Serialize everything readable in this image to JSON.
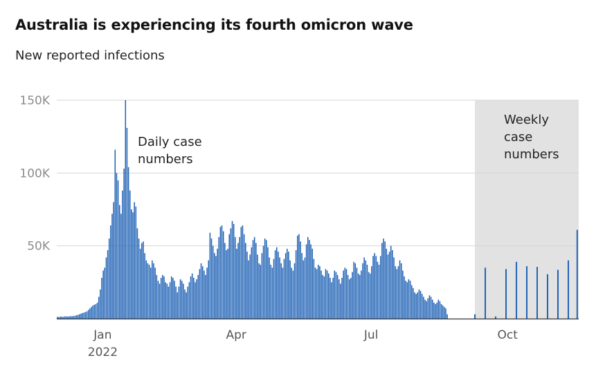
{
  "chart_data": {
    "type": "bar",
    "title": "Australia is experiencing its fourth omicron wave",
    "subtitle": "New reported infections",
    "ylim": [
      0,
      150000
    ],
    "y_ticks": [
      {
        "value": 150000,
        "label": "150K"
      },
      {
        "value": 100000,
        "label": "100K"
      },
      {
        "value": 50000,
        "label": "50K"
      }
    ],
    "x_ticks": [
      {
        "date": "2022-01-01",
        "label": "Jan",
        "sublabel": "2022"
      },
      {
        "date": "2022-04-01",
        "label": "Apr"
      },
      {
        "date": "2022-07-01",
        "label": "Jul"
      },
      {
        "date": "2022-10-01",
        "label": "Oct"
      }
    ],
    "grid": true,
    "shaded_region": {
      "start": "2022-09-09",
      "end": "2022-11-10",
      "label": "Weekly case numbers",
      "color": "#e2e2e2"
    },
    "annotations": [
      {
        "text": "Daily case numbers"
      }
    ],
    "bar_color": "#1f62b5",
    "daily_series": {
      "start": "2021-12-01",
      "values": [
        1200,
        1100,
        1300,
        1400,
        1200,
        1500,
        1600,
        1400,
        1500,
        1700,
        1600,
        1800,
        2000,
        2300,
        2600,
        3000,
        3400,
        3800,
        4200,
        4500,
        5000,
        6000,
        7000,
        8000,
        9000,
        9500,
        10000,
        11000,
        15000,
        20000,
        28000,
        33000,
        35000,
        42000,
        47000,
        55000,
        64000,
        72000,
        80000,
        116000,
        100000,
        95000,
        78000,
        72000,
        88000,
        103000,
        150000,
        131000,
        104000,
        88000,
        75000,
        73000,
        80000,
        77000,
        62000,
        55000,
        48000,
        52000,
        53000,
        45000,
        40000,
        38000,
        37000,
        35000,
        40000,
        38000,
        35000,
        30000,
        26000,
        24000,
        28000,
        30000,
        29000,
        25000,
        24000,
        22000,
        25000,
        29000,
        28000,
        26000,
        22000,
        18000,
        22000,
        27000,
        26000,
        24000,
        20000,
        18000,
        22000,
        25000,
        29000,
        31000,
        28000,
        25000,
        27000,
        30000,
        34000,
        38000,
        36000,
        33000,
        30000,
        35000,
        40000,
        59000,
        55000,
        50000,
        45000,
        43000,
        48000,
        56000,
        63000,
        64000,
        60000,
        52000,
        47000,
        48000,
        58000,
        62000,
        67000,
        65000,
        56000,
        48000,
        52000,
        56000,
        63000,
        64000,
        58000,
        52000,
        46000,
        40000,
        44000,
        49000,
        54000,
        56000,
        52000,
        44000,
        38000,
        37000,
        45000,
        50000,
        55000,
        54000,
        49000,
        42000,
        37000,
        35000,
        41000,
        47000,
        49000,
        46000,
        42000,
        38000,
        35000,
        41000,
        45000,
        48000,
        46000,
        40000,
        35000,
        33000,
        38000,
        47000,
        57000,
        58000,
        53000,
        45000,
        40000,
        42000,
        51000,
        56000,
        54000,
        51000,
        48000,
        41000,
        35000,
        34000,
        37000,
        36000,
        33000,
        30000,
        29000,
        34000,
        33000,
        31000,
        28000,
        25000,
        28000,
        33000,
        32000,
        30000,
        27000,
        24000,
        28000,
        33000,
        35000,
        34000,
        30000,
        27000,
        28000,
        32000,
        39000,
        38000,
        35000,
        31000,
        30000,
        33000,
        38000,
        42000,
        40000,
        37000,
        32000,
        31000,
        36000,
        43000,
        45000,
        43000,
        39000,
        37000,
        43000,
        52000,
        55000,
        53000,
        48000,
        44000,
        46000,
        50000,
        47000,
        42000,
        36000,
        34000,
        36000,
        40000,
        38000,
        33000,
        29000,
        26000,
        25000,
        27000,
        26000,
        23000,
        21000,
        18000,
        17000,
        18000,
        20000,
        19000,
        17000,
        15000,
        13000,
        12000,
        14000,
        16000,
        15000,
        13000,
        11000,
        10000,
        11000,
        13000,
        12000,
        10000,
        9000,
        8000,
        7000,
        3000
      ]
    },
    "weekly_series": [
      {
        "date": "2022-09-09",
        "value": 3000
      },
      {
        "date": "2022-09-16",
        "value": 35000
      },
      {
        "date": "2022-09-23",
        "value": 1500
      },
      {
        "date": "2022-09-30",
        "value": 34000
      },
      {
        "date": "2022-10-07",
        "value": 39000
      },
      {
        "date": "2022-10-14",
        "value": 36000
      },
      {
        "date": "2022-10-21",
        "value": 35500
      },
      {
        "date": "2022-10-28",
        "value": 30500
      },
      {
        "date": "2022-11-04",
        "value": 33500
      },
      {
        "date": "2022-11-11",
        "value": 40000
      },
      {
        "date": "2022-11-17",
        "value": 61000
      }
    ]
  }
}
